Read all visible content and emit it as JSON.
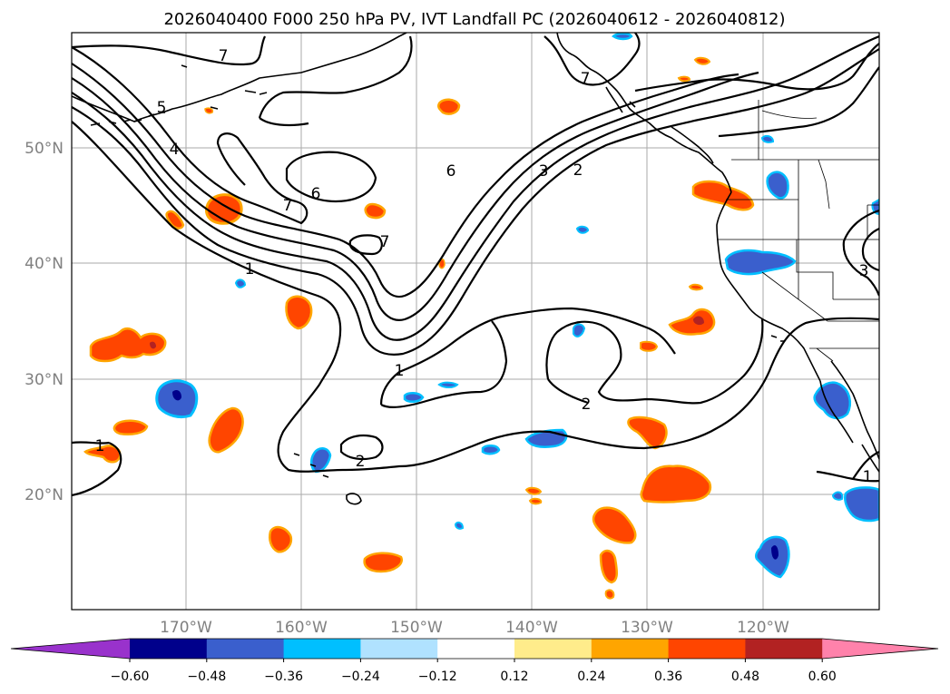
{
  "title": "2026040400 F000 250 hPa PV, IVT Landfall PC (2026040612 - 2026040812)",
  "longitude_labels": [
    "170°W",
    "160°W",
    "150°W",
    "140°W",
    "130°W",
    "120°W"
  ],
  "latitude_labels": [
    "50°N",
    "40°N",
    "30°N",
    "20°N"
  ],
  "contour_labels": [
    "7",
    "7",
    "5",
    "4",
    "7",
    "6",
    "7",
    "6",
    "3",
    "2",
    "1",
    "1",
    "2",
    "2",
    "1",
    "3",
    "1"
  ],
  "colorbar": {
    "tick_labels": [
      "−0.60",
      "−0.48",
      "−0.36",
      "−0.24",
      "−0.12",
      "0.12",
      "0.24",
      "0.36",
      "0.48",
      "0.60"
    ],
    "colors": [
      "#9932cc",
      "#00008b",
      "#3a5fcd",
      "#00bfff",
      "#b0e2ff",
      "#ffffff",
      "#ffec8b",
      "#ffa500",
      "#ff4500",
      "#b22222",
      "#ff82ab"
    ]
  },
  "colors": {
    "positive": "#ff4500",
    "positive_edge": "#ffa500",
    "negative": "#3a5fcd",
    "negative_edge": "#00bfff",
    "strong_negative": "#00008b",
    "strong_positive": "#b22222"
  }
}
